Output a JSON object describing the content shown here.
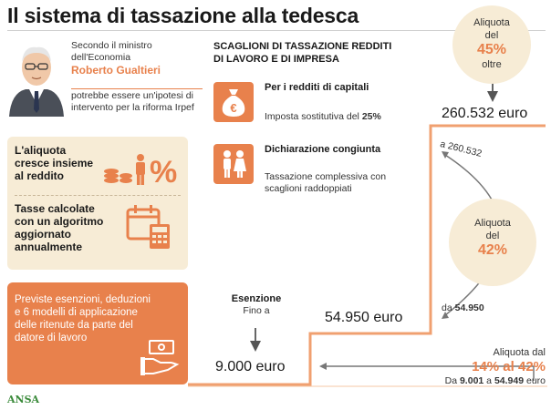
{
  "title": "Il sistema di tassazione alla tedesca",
  "minister": {
    "intro": "Secondo il ministro dell'Economia",
    "name": "Roberto Gualtieri",
    "outro": "potrebbe essere un'ipotesi di intervento per la riforma Irpef"
  },
  "features": {
    "aliquota": "L'aliquota cresce insieme al reddito",
    "algoritmo": "Tasse calcolate con un algoritmo aggiornato annualmente",
    "esenzioni": "Previste esenzioni, deduzioni e 6 modelli di applicazione delle ritenute da parte del datore di lavoro"
  },
  "scaglioni": {
    "heading": "SCAGLIONI DI TASSAZIONE REDDITI DI LAVORO E DI IMPRESA",
    "capitali_title": "Per i redditi di capitali",
    "capitali_desc": "Imposta sostitutiva del",
    "capitali_rate": "25%",
    "congiunta_title": "Dichiarazione congiunta",
    "congiunta_desc": "Tassazione complessiva con scaglioni raddoppiati"
  },
  "brackets": {
    "top_label1": "Aliquota",
    "top_label2": "del",
    "top_rate": "45%",
    "top_suffix": "oltre",
    "top_threshold": "260.532 euro",
    "mid_label1": "Aliquota",
    "mid_label2": "del",
    "mid_rate": "42%",
    "arc_top": "a 260.532",
    "arc_bottom_prefix": "da",
    "arc_bottom_value": "54.950",
    "mid_threshold": "54.950 euro",
    "low_label": "Aliquota dal",
    "low_rate": "14% al 42%",
    "low_range_prefix": "Da",
    "low_range_from": "9.001",
    "low_range_mid": "a",
    "low_range_to": "54.949",
    "low_range_suffix": "euro",
    "exempt_title": "Esenzione",
    "exempt_sub": "Fino a",
    "exempt_threshold": "9.000 euro"
  },
  "source": "ANSA",
  "colors": {
    "accent": "#e8814c",
    "beige": "#f7ecd6"
  }
}
